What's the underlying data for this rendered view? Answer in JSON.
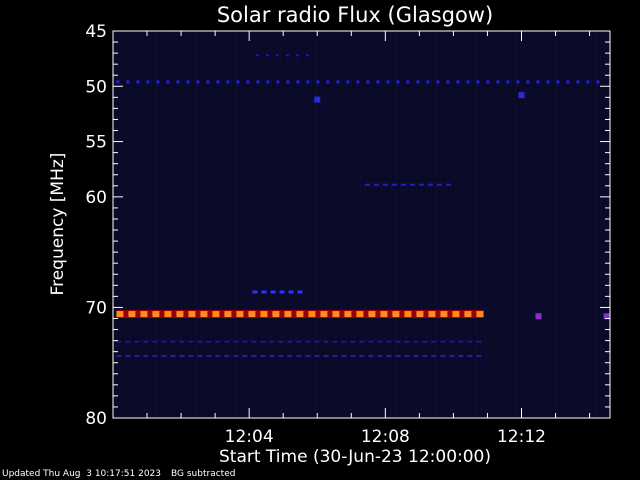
{
  "chart_data": {
    "type": "heatmap",
    "title": "Solar radio Flux (Glasgow)",
    "xlabel": "Start Time (30-Jun-23 12:00:00)",
    "ylabel": "Frequency [MHz]",
    "x_unit": "minutes after 12:00:00",
    "xlim": [
      0,
      14.6
    ],
    "ylim": [
      80,
      45
    ],
    "y_ticks": [
      45,
      50,
      55,
      60,
      70,
      80
    ],
    "x_ticks": [
      {
        "value": 4,
        "label": "12:04"
      },
      {
        "value": 8,
        "label": "12:08"
      },
      {
        "value": 12,
        "label": "12:12"
      }
    ],
    "background_color": "#0a0a28",
    "features": [
      {
        "kind": "dashed-line",
        "frequency": 49.6,
        "t_start": 0.1,
        "t_end": 14.5,
        "color": "#2020dd",
        "intensity": "medium"
      },
      {
        "kind": "dashed-line",
        "frequency": 47.2,
        "t_start": 4.2,
        "t_end": 5.8,
        "color": "#1a1ab0",
        "intensity": "low"
      },
      {
        "kind": "dashed-line",
        "frequency": 58.9,
        "t_start": 7.4,
        "t_end": 10.0,
        "color": "#2222c8",
        "intensity": "low"
      },
      {
        "kind": "dashed-line",
        "frequency": 68.6,
        "t_start": 4.1,
        "t_end": 5.6,
        "color": "#3030ff",
        "intensity": "medium"
      },
      {
        "kind": "dashed-line",
        "frequency": 70.6,
        "t_start": 0.1,
        "t_end": 10.9,
        "color": "#ff8a20",
        "intensity": "high"
      },
      {
        "kind": "dashed-line",
        "frequency": 73.1,
        "t_start": 0.1,
        "t_end": 10.9,
        "color": "#1a1a90",
        "intensity": "low"
      },
      {
        "kind": "dashed-line",
        "frequency": 74.4,
        "t_start": 0.1,
        "t_end": 10.9,
        "color": "#22229c",
        "intensity": "low"
      },
      {
        "kind": "spot",
        "frequency": 70.8,
        "t": 12.5,
        "color": "#8a2fd0",
        "intensity": "medium"
      },
      {
        "kind": "spot",
        "frequency": 70.8,
        "t": 14.5,
        "color": "#8a2fd0",
        "intensity": "medium"
      },
      {
        "kind": "spot",
        "frequency": 51.2,
        "t": 6.0,
        "color": "#2a2ae0",
        "intensity": "medium"
      },
      {
        "kind": "spot",
        "frequency": 50.8,
        "t": 12.0,
        "color": "#2a2ae0",
        "intensity": "medium"
      }
    ]
  },
  "footer": {
    "updated": "Updated Thu Aug  3 10:17:51 2023",
    "note": "BG subtracted"
  }
}
